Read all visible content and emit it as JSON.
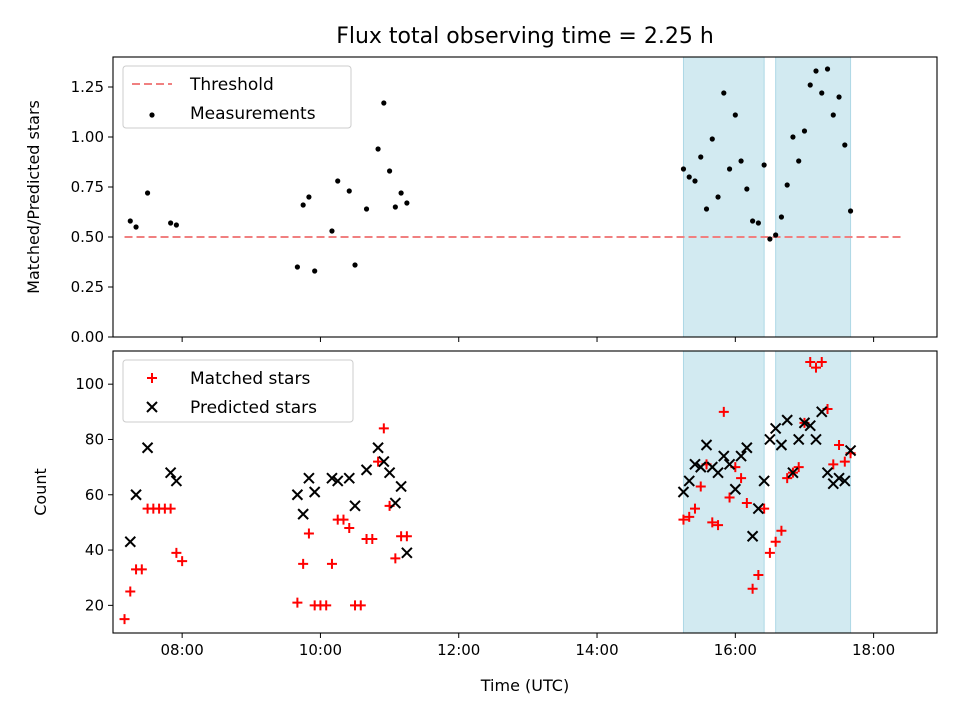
{
  "chart_data": [
    {
      "type": "scatter",
      "title": "Flux total observing time = 2.25 h",
      "xlabel": "",
      "ylabel": "Matched/Predicted stars",
      "xlim": [
        "07:00",
        "18:55"
      ],
      "ylim": [
        0,
        1.4
      ],
      "x_ticks": [
        "08:00",
        "10:00",
        "12:00",
        "14:00",
        "16:00",
        "18:00"
      ],
      "y_ticks": [
        "0.00",
        "0.25",
        "0.50",
        "0.75",
        "1.00",
        "1.25"
      ],
      "legend_position": "top-left",
      "shaded_intervals": [
        [
          "15:15",
          "16:25"
        ],
        [
          "16:35",
          "17:40"
        ]
      ],
      "shade_color": "#add8e6",
      "series": [
        {
          "name": "Threshold",
          "style": "dashed-line",
          "color": "#f08080",
          "x": [
            "07:10",
            "18:25"
          ],
          "values": [
            0.5,
            0.5
          ]
        },
        {
          "name": "Measurements",
          "style": "dot",
          "color": "#000000",
          "x": [
            "07:15",
            "07:20",
            "07:30",
            "07:50",
            "07:55",
            "09:40",
            "09:45",
            "09:50",
            "09:55",
            "10:10",
            "10:15",
            "10:25",
            "10:30",
            "10:40",
            "10:50",
            "10:55",
            "11:00",
            "11:05",
            "11:10",
            "11:15",
            "15:15",
            "15:20",
            "15:25",
            "15:30",
            "15:35",
            "15:40",
            "15:45",
            "15:50",
            "15:55",
            "16:00",
            "16:05",
            "16:10",
            "16:15",
            "16:20",
            "16:25",
            "16:30",
            "16:35",
            "16:40",
            "16:45",
            "16:50",
            "16:55",
            "17:00",
            "17:05",
            "17:10",
            "17:15",
            "17:20",
            "17:25",
            "17:30",
            "17:35",
            "17:40"
          ],
          "values": [
            0.58,
            0.55,
            0.72,
            0.57,
            0.56,
            0.35,
            0.66,
            0.7,
            0.33,
            0.53,
            0.78,
            0.73,
            0.36,
            0.64,
            0.94,
            1.17,
            0.83,
            0.65,
            0.72,
            0.67,
            0.84,
            0.8,
            0.78,
            0.9,
            0.64,
            0.99,
            0.7,
            1.22,
            0.84,
            1.11,
            0.88,
            0.74,
            0.58,
            0.57,
            0.86,
            0.49,
            0.51,
            0.6,
            0.76,
            1.0,
            0.88,
            1.03,
            1.26,
            1.33,
            1.22,
            1.34,
            1.11,
            1.2,
            0.96,
            0.63
          ]
        }
      ]
    },
    {
      "type": "scatter",
      "title": "",
      "xlabel": "Time (UTC)",
      "ylabel": "Count",
      "xlim": [
        "07:00",
        "18:55"
      ],
      "ylim": [
        10,
        112
      ],
      "x_ticks": [
        "08:00",
        "10:00",
        "12:00",
        "14:00",
        "16:00",
        "18:00"
      ],
      "y_ticks": [
        "20",
        "40",
        "60",
        "80",
        "100"
      ],
      "legend_position": "top-left",
      "shaded_intervals": [
        [
          "15:15",
          "16:25"
        ],
        [
          "16:35",
          "17:40"
        ]
      ],
      "shade_color": "#add8e6",
      "series": [
        {
          "name": "Matched stars",
          "style": "plus",
          "color": "#ff0000",
          "x": [
            "07:10",
            "07:15",
            "07:20",
            "07:25",
            "07:30",
            "07:35",
            "07:40",
            "07:45",
            "07:50",
            "07:55",
            "08:00",
            "09:40",
            "09:45",
            "09:50",
            "09:55",
            "10:00",
            "10:05",
            "10:10",
            "10:15",
            "10:20",
            "10:25",
            "10:30",
            "10:35",
            "10:40",
            "10:45",
            "10:50",
            "10:55",
            "11:00",
            "11:05",
            "11:10",
            "11:15",
            "15:15",
            "15:20",
            "15:25",
            "15:30",
            "15:35",
            "15:40",
            "15:45",
            "15:50",
            "15:55",
            "16:00",
            "16:05",
            "16:10",
            "16:15",
            "16:20",
            "16:25",
            "16:30",
            "16:35",
            "16:40",
            "16:45",
            "16:50",
            "16:55",
            "17:00",
            "17:05",
            "17:10",
            "17:15",
            "17:20",
            "17:25",
            "17:30",
            "17:35",
            "17:40"
          ],
          "values": [
            15,
            25,
            33,
            33,
            55,
            55,
            55,
            55,
            55,
            39,
            36,
            21,
            35,
            46,
            20,
            20,
            20,
            35,
            51,
            51,
            48,
            20,
            20,
            44,
            44,
            72,
            84,
            56,
            37,
            45,
            45,
            51,
            52,
            55,
            63,
            71,
            50,
            49,
            90,
            59,
            70,
            66,
            57,
            26,
            31,
            55,
            39,
            43,
            47,
            66,
            68,
            70,
            86,
            108,
            106,
            108,
            91,
            71,
            78,
            72,
            75
          ]
        },
        {
          "name": "Predicted stars",
          "style": "x",
          "color": "#000000",
          "x": [
            "07:15",
            "07:20",
            "07:30",
            "07:50",
            "07:55",
            "09:40",
            "09:45",
            "09:50",
            "09:55",
            "10:10",
            "10:15",
            "10:25",
            "10:30",
            "10:40",
            "10:50",
            "10:55",
            "11:00",
            "11:05",
            "11:10",
            "11:15",
            "15:15",
            "15:20",
            "15:25",
            "15:30",
            "15:35",
            "15:40",
            "15:45",
            "15:50",
            "15:55",
            "16:00",
            "16:05",
            "16:10",
            "16:15",
            "16:20",
            "16:25",
            "16:30",
            "16:35",
            "16:40",
            "16:45",
            "16:50",
            "16:55",
            "17:00",
            "17:05",
            "17:10",
            "17:15",
            "17:20",
            "17:25",
            "17:30",
            "17:35",
            "17:40"
          ],
          "values": [
            43,
            60,
            77,
            68,
            65,
            60,
            53,
            66,
            61,
            66,
            65,
            66,
            56,
            69,
            77,
            72,
            68,
            57,
            63,
            39,
            61,
            65,
            71,
            70,
            78,
            70,
            68,
            74,
            71,
            62,
            74,
            77,
            45,
            55,
            65,
            80,
            84,
            78,
            87,
            68,
            80,
            86,
            85,
            80,
            90,
            68,
            64,
            66,
            65,
            76
          ]
        }
      ]
    }
  ]
}
